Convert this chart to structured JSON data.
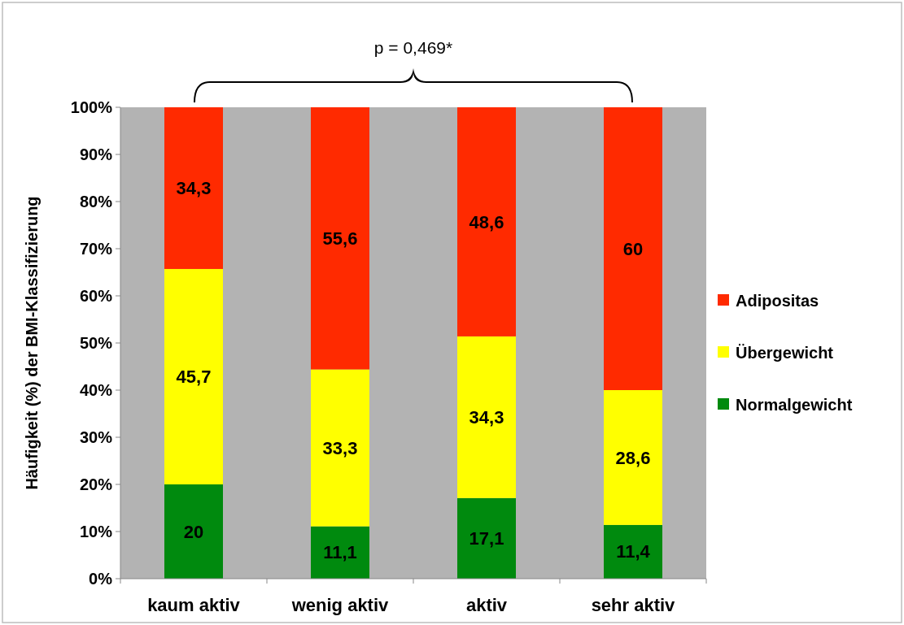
{
  "chart_data": {
    "type": "bar",
    "stacked": true,
    "ylabel": "Häufigkeit (%) der BMI-Klassifizierung",
    "categories": [
      "kaum aktiv",
      "wenig aktiv",
      "aktiv",
      "sehr aktiv"
    ],
    "series": [
      {
        "name": "Normalgewicht",
        "color": "#008a0e",
        "values": [
          20,
          11.1,
          17.1,
          11.4
        ],
        "value_labels": [
          "20",
          "11,1",
          "17,1",
          "11,4"
        ]
      },
      {
        "name": "Übergewicht",
        "color": "#ffff00",
        "values": [
          45.7,
          33.3,
          34.3,
          28.6
        ],
        "value_labels": [
          "45,7",
          "33,3",
          "34,3",
          "28,6"
        ]
      },
      {
        "name": "Adipositas",
        "color": "#ff2a00",
        "values": [
          34.3,
          55.6,
          48.6,
          60
        ],
        "value_labels": [
          "34,3",
          "55,6",
          "48,6",
          "60"
        ]
      }
    ],
    "ylim": [
      0,
      100
    ],
    "yticks": [
      {
        "value": 0,
        "label": "0%"
      },
      {
        "value": 10,
        "label": "10%"
      },
      {
        "value": 20,
        "label": "20%"
      },
      {
        "value": 30,
        "label": "30%"
      },
      {
        "value": 40,
        "label": "40%"
      },
      {
        "value": 50,
        "label": "50%"
      },
      {
        "value": 60,
        "label": "60%"
      },
      {
        "value": 70,
        "label": "70%"
      },
      {
        "value": 80,
        "label": "80%"
      },
      {
        "value": 90,
        "label": "90%"
      },
      {
        "value": 100,
        "label": "100%"
      }
    ],
    "grid": false,
    "legend": "right",
    "annotations": [
      "p = 0,469*"
    ]
  }
}
